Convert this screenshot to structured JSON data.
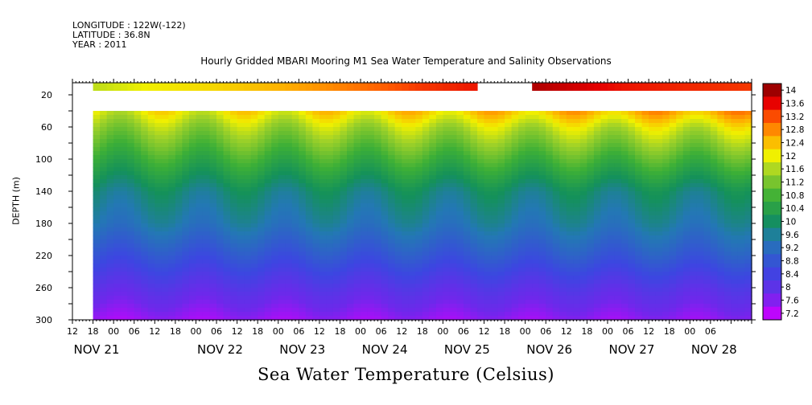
{
  "header": {
    "longitude": "LONGITUDE : 122W(-122)",
    "latitude": "LATITUDE : 36.8N",
    "year": "YEAR : 2011"
  },
  "chart_data": {
    "type": "heatmap",
    "title": "Hourly Gridded MBARI Mooring M1 Sea Water Temperature and Salinity Observations",
    "xlabel": "Sea Water Temperature (Celsius)",
    "ylabel": "DEPTH (m)",
    "x_axis": {
      "unit": "hours",
      "start_label": "NOV 21 12:00",
      "hour_ticks": [
        "12",
        "18",
        "00",
        "06",
        "12",
        "18",
        "00",
        "06",
        "12",
        "18",
        "00",
        "06",
        "12",
        "18",
        "00",
        "06",
        "12",
        "18",
        "00",
        "06",
        "12",
        "18",
        "00",
        "06",
        "12",
        "18",
        "00",
        "06",
        "12",
        "18",
        "00",
        "06"
      ],
      "day_labels": [
        "NOV 21",
        "NOV 22",
        "NOV 23",
        "NOV 24",
        "NOV 25",
        "NOV 26",
        "NOV 27",
        "NOV 28"
      ],
      "range_hours": [
        0,
        198
      ]
    },
    "y_axis": {
      "range": [
        5,
        300
      ],
      "ticks": [
        20,
        60,
        100,
        140,
        180,
        220,
        260,
        300
      ],
      "inverted": true
    },
    "colorbar": {
      "levels": [
        14,
        13.6,
        13.2,
        12.8,
        12.4,
        12,
        11.6,
        11.2,
        10.8,
        10.4,
        10,
        9.6,
        9.2,
        8.8,
        8.4,
        8,
        7.6,
        7.2
      ],
      "range": [
        7.2,
        14.2
      ]
    },
    "data_coverage": {
      "no_data_before_hours": 6,
      "surface_gap_hours": [
        118,
        133
      ],
      "upper_band_depth_m": [
        5,
        15
      ],
      "missing_depth_m": [
        15,
        40
      ]
    },
    "surface_temperature": {
      "hours": [
        6,
        20,
        40,
        60,
        80,
        100,
        118,
        134,
        160,
        198
      ],
      "values": [
        11.8,
        12.1,
        12.3,
        12.6,
        13.0,
        13.4,
        13.6,
        14.0,
        13.6,
        13.4
      ]
    },
    "profile_temperature": {
      "depths_m": [
        40,
        60,
        100,
        140,
        180,
        220,
        260,
        300
      ],
      "values_early": [
        12.0,
        11.5,
        10.7,
        9.9,
        9.5,
        8.8,
        8.1,
        7.5
      ],
      "values_late": [
        12.8,
        12.0,
        11.0,
        10.0,
        9.6,
        9.0,
        8.2,
        7.6
      ]
    }
  }
}
